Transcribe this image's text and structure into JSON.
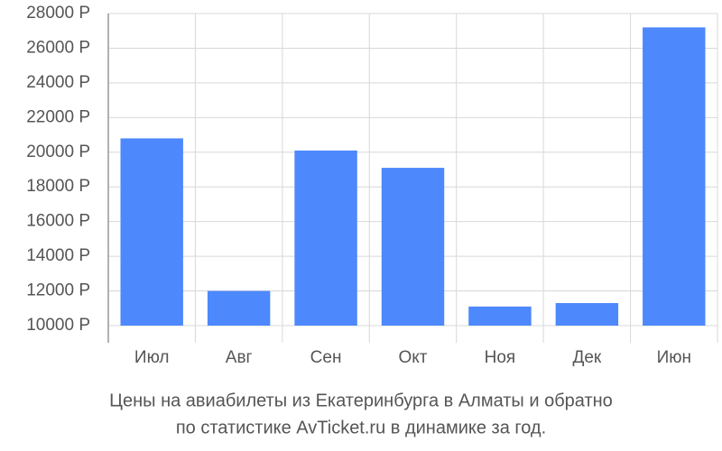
{
  "chart_data": {
    "type": "bar",
    "caption": [
      "Цены на авиабилеты из Екатеринбурга в Алматы и обратно",
      "по статистике AvTicket.ru в динамике за год."
    ],
    "categories": [
      "Июл",
      "Авг",
      "Сен",
      "Окт",
      "Ноя",
      "Дек",
      "Июн"
    ],
    "values": [
      20800,
      12000,
      20100,
      19100,
      11100,
      11300,
      27200
    ],
    "color": "#4d88fc",
    "ylim": [
      10000,
      28000
    ],
    "yticks": [
      {
        "value": 10000,
        "label": "10000 Р"
      },
      {
        "value": 12000,
        "label": "12000 Р"
      },
      {
        "value": 14000,
        "label": "14000 Р"
      },
      {
        "value": 16000,
        "label": "16000 Р"
      },
      {
        "value": 18000,
        "label": "18000 Р"
      },
      {
        "value": 20000,
        "label": "20000 Р"
      },
      {
        "value": 22000,
        "label": "22000 Р"
      },
      {
        "value": 24000,
        "label": "24000 Р"
      },
      {
        "value": 26000,
        "label": "26000 Р"
      },
      {
        "value": 28000,
        "label": "28000 Р"
      }
    ],
    "grid": true
  }
}
